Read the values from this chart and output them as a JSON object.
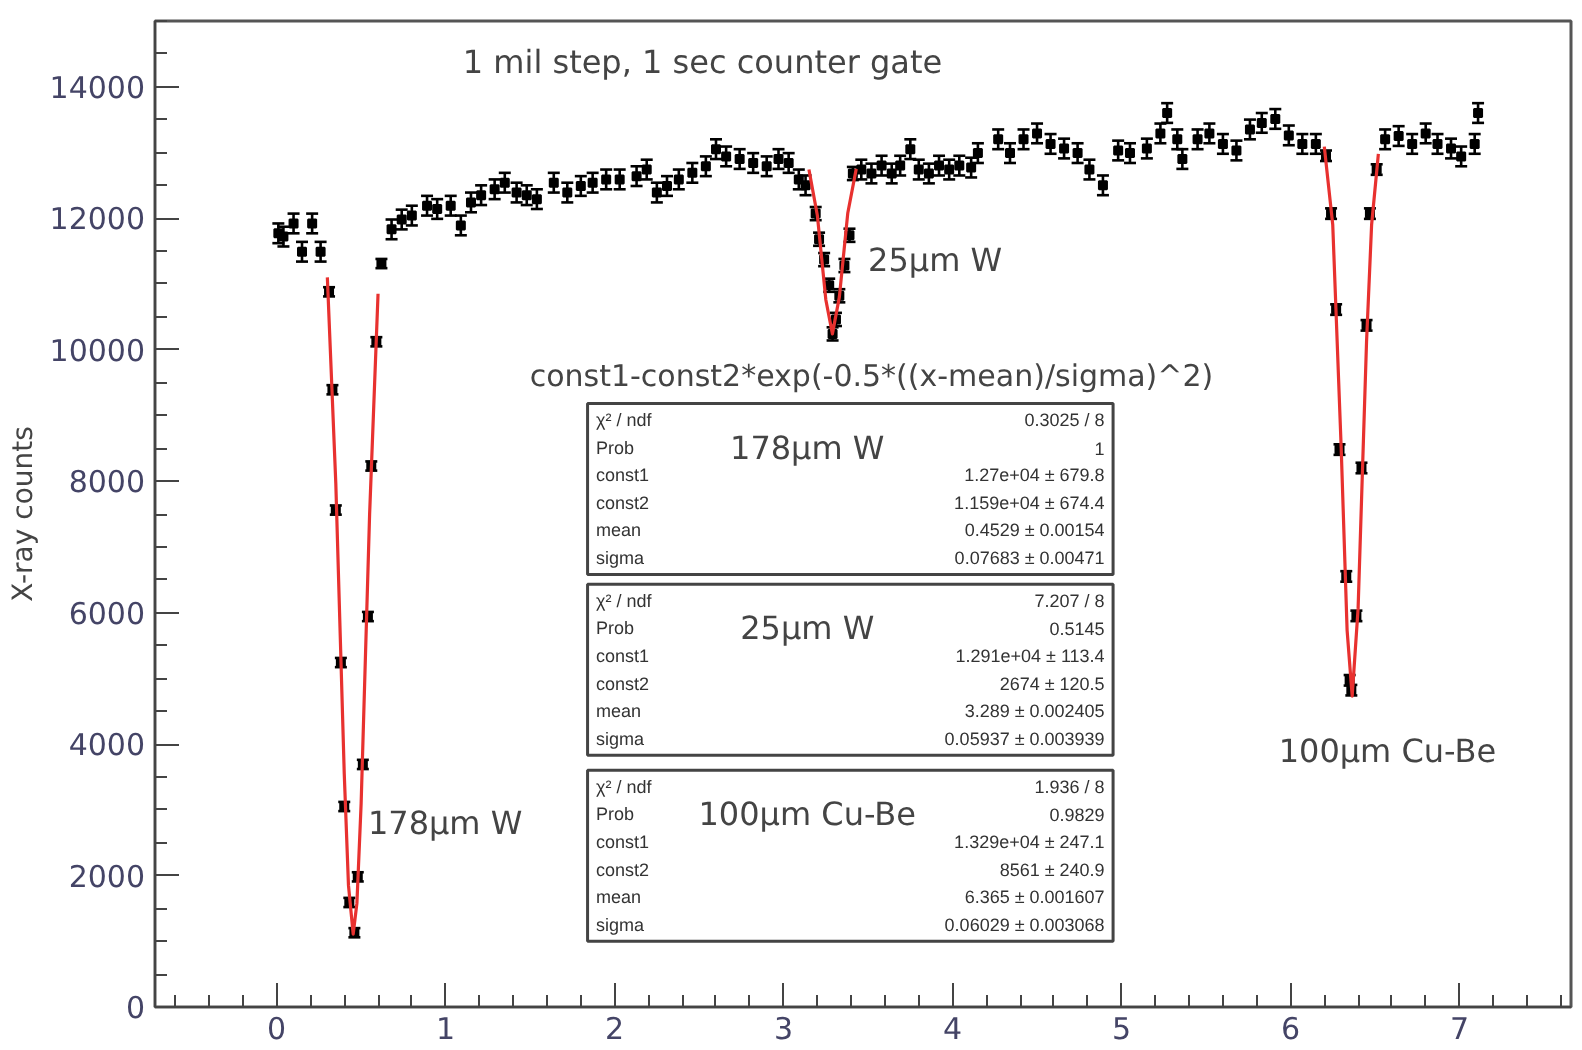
{
  "chart_data": {
    "type": "scatter",
    "title": "1 mil step, 1 sec counter gate",
    "ylabel": "X-ray counts",
    "xlim": [
      -0.72,
      7.66
    ],
    "ylim": [
      0,
      15000
    ],
    "xticks": [
      0,
      1,
      2,
      3,
      4,
      5,
      6,
      7
    ],
    "yticks": [
      0,
      2000,
      4000,
      6000,
      8000,
      10000,
      12000,
      14000
    ],
    "grid": false,
    "series": [
      {
        "marker": "square",
        "color": "#000000",
        "x": [
          0.01,
          0.04,
          0.1,
          0.15,
          0.21,
          0.26,
          0.31,
          0.33,
          0.35,
          0.38,
          0.4,
          0.43,
          0.46,
          0.48,
          0.51,
          0.54,
          0.56,
          0.59,
          0.62,
          0.68,
          0.74,
          0.8,
          0.89,
          0.95,
          1.03,
          1.09,
          1.15,
          1.21,
          1.29,
          1.35,
          1.42,
          1.48,
          1.54,
          1.64,
          1.72,
          1.8,
          1.87,
          1.95,
          2.03,
          2.13,
          2.19,
          2.25,
          2.31,
          2.38,
          2.46,
          2.54,
          2.6,
          2.66,
          2.74,
          2.82,
          2.9,
          2.97,
          3.03,
          3.09,
          3.13,
          3.19,
          3.21,
          3.24,
          3.27,
          3.29,
          3.31,
          3.33,
          3.36,
          3.39,
          3.41,
          3.46,
          3.52,
          3.58,
          3.64,
          3.69,
          3.75,
          3.8,
          3.86,
          3.92,
          3.98,
          4.04,
          4.11,
          4.15,
          4.27,
          4.34,
          4.42,
          4.5,
          4.58,
          4.66,
          4.74,
          4.81,
          4.89,
          4.98,
          5.05,
          5.15,
          5.23,
          5.27,
          5.33,
          5.36,
          5.45,
          5.52,
          5.6,
          5.68,
          5.76,
          5.83,
          5.91,
          5.99,
          6.07,
          6.15,
          6.21,
          6.24,
          6.27,
          6.29,
          6.33,
          6.35,
          6.36,
          6.39,
          6.42,
          6.45,
          6.47,
          6.51,
          6.56,
          6.64,
          6.72,
          6.8,
          6.87,
          6.95,
          7.01,
          7.09,
          7.11
        ],
        "values": [
          11770,
          11720,
          11920,
          11490,
          11920,
          11490,
          10880,
          9390,
          7560,
          5240,
          3050,
          1590,
          1130,
          1980,
          3690,
          5940,
          8230,
          10120,
          11310,
          11830,
          11980,
          12040,
          12190,
          12140,
          12190,
          11890,
          12240,
          12350,
          12440,
          12540,
          12390,
          12350,
          12290,
          12540,
          12390,
          12490,
          12540,
          12590,
          12590,
          12640,
          12740,
          12390,
          12490,
          12590,
          12690,
          12790,
          13050,
          12940,
          12900,
          12840,
          12790,
          12900,
          12840,
          12590,
          12500,
          12070,
          11680,
          11370,
          10980,
          10240,
          10460,
          10820,
          11280,
          11740,
          12680,
          12740,
          12680,
          12800,
          12680,
          12800,
          13050,
          12740,
          12680,
          12800,
          12740,
          12800,
          12770,
          12990,
          13200,
          12990,
          13200,
          13290,
          13130,
          13060,
          12990,
          12740,
          12500,
          13030,
          12990,
          13060,
          13290,
          13600,
          13200,
          12900,
          13200,
          13290,
          13130,
          13030,
          13350,
          13450,
          13510,
          13260,
          13130,
          13130,
          12950,
          12070,
          10610,
          8480,
          6550,
          4970,
          4820,
          5950,
          8200,
          10370,
          12070,
          12740,
          13200,
          13250,
          13130,
          13290,
          13130,
          13060,
          12940,
          13130,
          13600
        ],
        "errors": [
          150,
          150,
          150,
          150,
          150,
          150,
          70,
          70,
          70,
          70,
          70,
          70,
          70,
          70,
          70,
          70,
          70,
          70,
          70,
          150,
          150,
          150,
          150,
          150,
          150,
          150,
          150,
          150,
          150,
          150,
          150,
          150,
          150,
          150,
          150,
          150,
          150,
          150,
          150,
          150,
          150,
          150,
          150,
          150,
          150,
          150,
          150,
          150,
          150,
          150,
          150,
          150,
          150,
          150,
          150,
          100,
          100,
          100,
          100,
          100,
          100,
          100,
          100,
          100,
          100,
          150,
          150,
          150,
          150,
          150,
          150,
          150,
          150,
          150,
          150,
          150,
          150,
          150,
          150,
          150,
          150,
          150,
          150,
          150,
          150,
          150,
          150,
          150,
          150,
          150,
          150,
          150,
          150,
          150,
          150,
          150,
          150,
          150,
          150,
          150,
          150,
          150,
          150,
          150,
          80,
          80,
          80,
          80,
          80,
          80,
          80,
          80,
          80,
          80,
          80,
          80,
          150,
          150,
          150,
          150,
          150,
          150,
          150,
          150,
          150
        ]
      },
      {
        "type": "line",
        "color": "#e8312f",
        "x": [
          0.3,
          0.35,
          0.4,
          0.425,
          0.4529,
          0.475,
          0.5,
          0.55,
          0.6
        ],
        "values": [
          11100,
          7970,
          3550,
          1850,
          1110,
          1580,
          3100,
          7490,
          10850
        ]
      },
      {
        "type": "line",
        "color": "#e8312f",
        "x": [
          3.15,
          3.2,
          3.25,
          3.289,
          3.33,
          3.38,
          3.43
        ],
        "values": [
          12740,
          12040,
          10760,
          10240,
          10800,
          12080,
          12750
        ]
      },
      {
        "type": "line",
        "color": "#e8312f",
        "x": [
          6.2,
          6.25,
          6.3,
          6.335,
          6.365,
          6.4,
          6.45,
          6.48,
          6.52
        ],
        "values": [
          13090,
          11900,
          8500,
          5730,
          4730,
          6060,
          10120,
          11900,
          12980
        ]
      }
    ],
    "annotations": [
      "const1-const2*exp(-0.5*((x-mean)/sigma)^2)",
      "178µm W",
      "χ² / ndf",
      "0.3025 / 8",
      "Prob",
      "1",
      "const1",
      "1.27e+04 ± 679.8",
      "const2",
      "1.159e+04 ± 674.4",
      "mean",
      "0.4529 ± 0.00154",
      "sigma",
      "0.07683 ± 0.00471",
      "25µm W",
      "χ² / ndf",
      "7.207 / 8",
      "Prob",
      "0.5145",
      "const1",
      "1.291e+04 ± 113.4",
      "const2",
      "2674 ± 120.5",
      "mean",
      "3.289 ± 0.002405",
      "sigma",
      "0.05937 ± 0.003939",
      "100µm Cu-Be",
      "χ² / ndf",
      "1.936 / 8",
      "Prob",
      "0.9829",
      "const1",
      "1.329e+04 ± 247.1",
      "const2",
      "8561 ± 240.9",
      "mean",
      "6.365 ± 0.001607",
      "sigma",
      "0.06029 ± 0.003068",
      "178µm W",
      "25µm W",
      "100µm Cu-Be"
    ]
  }
}
